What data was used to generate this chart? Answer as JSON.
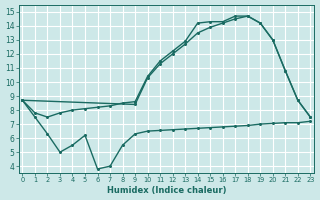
{
  "bg_color": "#cde8e8",
  "grid_color": "#b8d8d8",
  "line_color": "#1a6b62",
  "xlabel": "Humidex (Indice chaleur)",
  "xlim": [
    -0.3,
    23.3
  ],
  "ylim": [
    3.5,
    15.5
  ],
  "xticks": [
    0,
    1,
    2,
    3,
    4,
    5,
    6,
    7,
    8,
    9,
    10,
    11,
    12,
    13,
    14,
    15,
    16,
    17,
    18,
    19,
    20,
    21,
    22,
    23
  ],
  "yticks": [
    4,
    5,
    6,
    7,
    8,
    9,
    10,
    11,
    12,
    13,
    14,
    15
  ],
  "line1_x": [
    0,
    1,
    2,
    3,
    4,
    5,
    6,
    7,
    8,
    9,
    10,
    11,
    12,
    13,
    14,
    15,
    16,
    17,
    18,
    19,
    20,
    21,
    22,
    23
  ],
  "line1_y": [
    8.7,
    7.8,
    7.5,
    7.8,
    8.0,
    8.1,
    8.2,
    8.3,
    8.5,
    8.6,
    10.4,
    11.5,
    12.2,
    12.9,
    14.2,
    14.3,
    14.3,
    14.7,
    14.7,
    14.2,
    13.0,
    10.8,
    8.7,
    7.5
  ],
  "line2_x": [
    0,
    9,
    10,
    11,
    12,
    13,
    14,
    15,
    16,
    17,
    18,
    19,
    20,
    21,
    22,
    23
  ],
  "line2_y": [
    8.7,
    8.4,
    10.3,
    11.3,
    12.0,
    12.7,
    13.5,
    13.9,
    14.2,
    14.5,
    14.7,
    14.2,
    13.0,
    10.8,
    8.7,
    7.5
  ],
  "line3_x": [
    0,
    1,
    2,
    3,
    4,
    5,
    6,
    7,
    8,
    9,
    10,
    11,
    12,
    13,
    14,
    15,
    16,
    17,
    18,
    19,
    20,
    21,
    22,
    23
  ],
  "line3_y": [
    8.7,
    7.5,
    6.3,
    5.0,
    5.5,
    6.2,
    3.8,
    4.0,
    5.5,
    6.3,
    6.5,
    6.55,
    6.6,
    6.65,
    6.7,
    6.75,
    6.8,
    6.85,
    6.9,
    7.0,
    7.05,
    7.1,
    7.1,
    7.2
  ]
}
